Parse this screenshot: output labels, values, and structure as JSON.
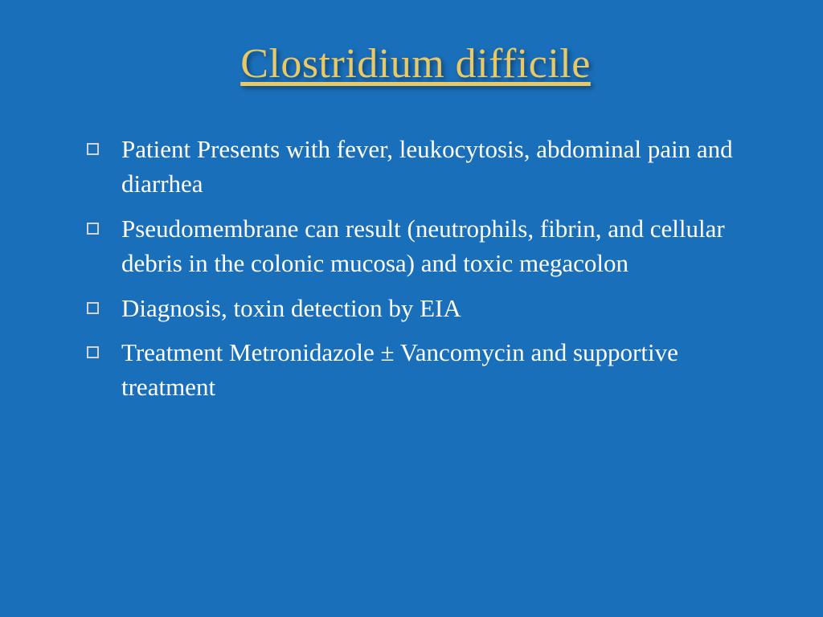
{
  "slide": {
    "title": "Clostridium difficile",
    "background_color": "#1a6fba",
    "title_color": "#e8c968",
    "text_color": "#ffffff",
    "bullet_marker_color": "#d4d4d4",
    "title_fontsize": 52,
    "body_fontsize": 31,
    "bullets": [
      "Patient Presents with fever, leukocytosis, abdominal pain and diarrhea",
      "Pseudomembrane can result (neutrophils, fibrin, and cellular debris in the colonic mucosa) and toxic megacolon",
      "Diagnosis, toxin detection by EIA",
      "Treatment Metronidazole ± Vancomycin and supportive treatment"
    ]
  }
}
